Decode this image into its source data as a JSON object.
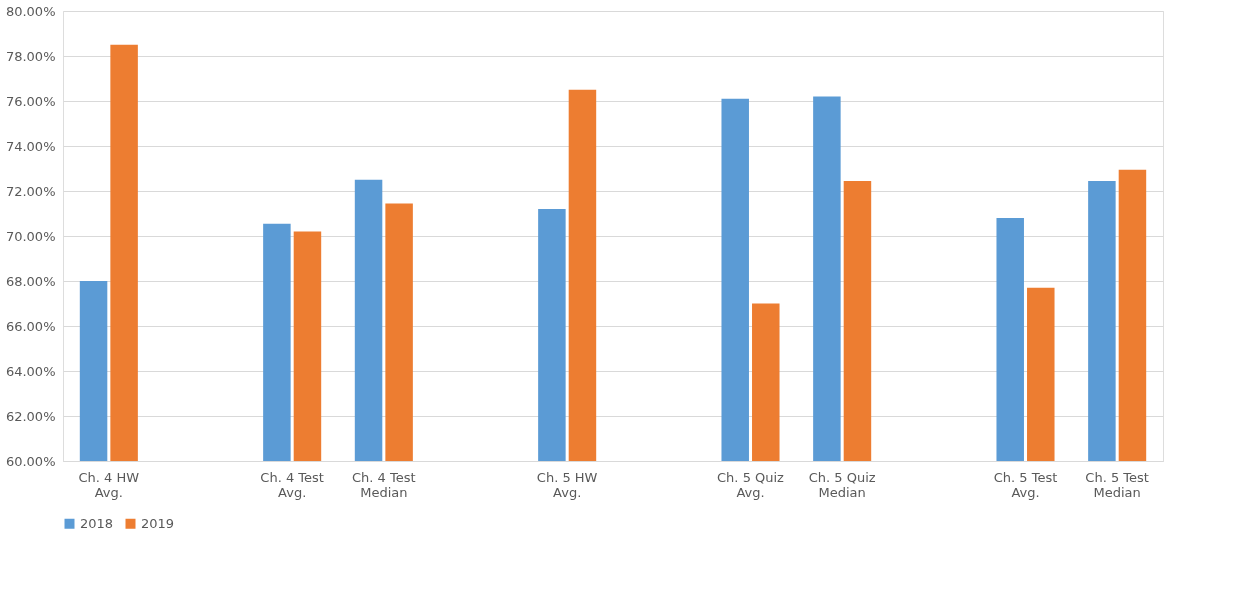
{
  "chart_data": {
    "type": "bar",
    "categories": [
      "Ch. 4 HW Avg.",
      null,
      "Ch. 4 Test Avg.",
      "Ch. 4 Test Median",
      null,
      "Ch. 5 HW Avg.",
      null,
      "Ch. 5 Quiz Avg.",
      "Ch. 5 Quiz Median",
      null,
      "Ch. 5 Test Avg.",
      "Ch. 5 Test Median"
    ],
    "series": [
      {
        "name": "2018",
        "color": "#5b9bd5",
        "values": [
          68.0,
          null,
          70.55,
          72.5,
          null,
          71.2,
          null,
          76.1,
          76.2,
          null,
          70.8,
          72.45
        ]
      },
      {
        "name": "2019",
        "color": "#ed7d31",
        "values": [
          78.5,
          null,
          70.2,
          71.45,
          null,
          76.5,
          null,
          67.0,
          72.45,
          null,
          67.7,
          72.95
        ]
      }
    ],
    "ylim": [
      60,
      80
    ],
    "yticks": [
      {
        "value": 60,
        "label": "60.00%"
      },
      {
        "value": 62,
        "label": "62.00%"
      },
      {
        "value": 64,
        "label": "64.00%"
      },
      {
        "value": 66,
        "label": "66.00%"
      },
      {
        "value": 68,
        "label": "68.00%"
      },
      {
        "value": 70,
        "label": "70.00%"
      },
      {
        "value": 72,
        "label": "72.00%"
      },
      {
        "value": 74,
        "label": "74.00%"
      },
      {
        "value": 76,
        "label": "76.00%"
      },
      {
        "value": 78,
        "label": "78.00%"
      },
      {
        "value": 80,
        "label": "80.00%"
      }
    ],
    "grid": "y",
    "legend": "bottom"
  }
}
